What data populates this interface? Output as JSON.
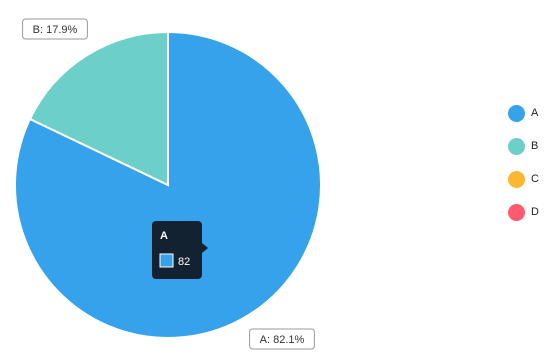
{
  "chart_data": {
    "type": "pie",
    "slices": [
      {
        "name": "A",
        "value": 82.1,
        "color": "#36A2EB"
      },
      {
        "name": "B",
        "value": 17.9,
        "color": "#6CCFC9"
      },
      {
        "name": "C",
        "value": 0,
        "color": "#FFB731"
      },
      {
        "name": "D",
        "value": 0,
        "color": "#FF5A6E"
      }
    ],
    "start_angle_deg": 0,
    "direction": "clockwise",
    "data_labels": {
      "A": "A: 82.1%",
      "B": "B: 17.9%"
    },
    "tooltip": {
      "title": "A",
      "value": "82",
      "color": "#36A2EB"
    },
    "legend_position": "right"
  }
}
